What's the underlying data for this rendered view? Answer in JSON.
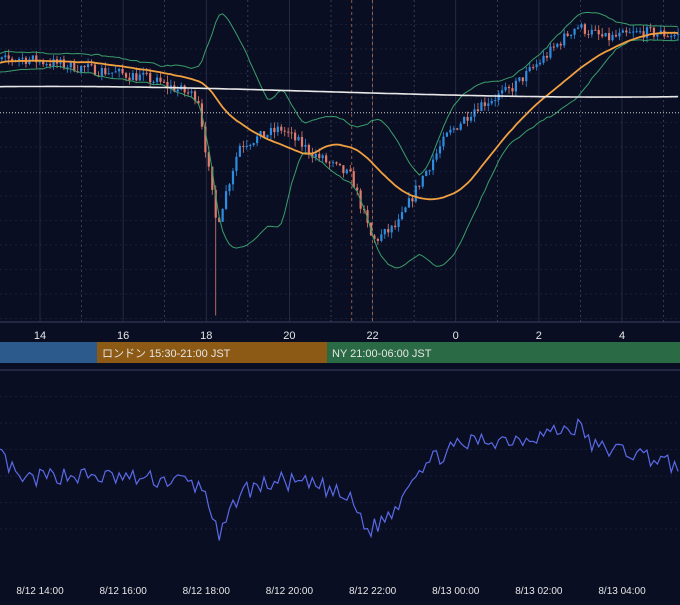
{
  "colors": {
    "background": "#0a0e23",
    "grid": "#2a3050",
    "candle_up": "#2f8de0",
    "candle_down": "#e07a6a",
    "ma_short": "#f0a040",
    "ma_long": "#e8e8e8",
    "bollinger": "#3a9e6a",
    "oscillator": "#5a6ae8",
    "session_asia": "#2c5a8c",
    "session_london": "#8c5a14",
    "session_ny": "#2a6a45",
    "label_text": "#e6e6e6"
  },
  "time_axis": {
    "top_ticks": [
      "14",
      "16",
      "18",
      "20",
      "22",
      "0",
      "2",
      "4"
    ],
    "bottom_ticks": [
      "8/12 14:00",
      "8/12 16:00",
      "8/12 18:00",
      "8/12 20:00",
      "8/12 22:00",
      "8/13 00:00",
      "8/13 02:00",
      "8/13 04:00"
    ]
  },
  "sessions": [
    {
      "name": "asia",
      "label": ""
    },
    {
      "name": "london",
      "label": "ロンドン 15:30-21:00 JST"
    },
    {
      "name": "ny",
      "label": "NY 21:00-06:00 JST"
    }
  ],
  "chart_data": [
    {
      "type": "candlestick",
      "x_unit": "hour (JST)",
      "x_start": 12.5,
      "x_end": 5.4,
      "series": [
        {
          "name": "",
          "kind": "candles",
          "seed": 7
        },
        {
          "name": "",
          "kind": "moving_average_short"
        },
        {
          "name": "",
          "kind": "moving_average_long"
        },
        {
          "name": "",
          "kind": "bollinger_bands"
        }
      ],
      "price_trend": [
        [
          12.5,
          0.8
        ],
        [
          13.5,
          0.82
        ],
        [
          15.0,
          0.79
        ],
        [
          16.5,
          0.76
        ],
        [
          17.8,
          0.7
        ],
        [
          18.25,
          0.3
        ],
        [
          18.8,
          0.55
        ],
        [
          19.8,
          0.6
        ],
        [
          20.6,
          0.52
        ],
        [
          21.5,
          0.45
        ],
        [
          22.0,
          0.25
        ],
        [
          22.6,
          0.3
        ],
        [
          23.2,
          0.45
        ],
        [
          23.8,
          0.58
        ],
        [
          0.5,
          0.67
        ],
        [
          1.3,
          0.72
        ],
        [
          2.2,
          0.83
        ],
        [
          2.9,
          0.92
        ],
        [
          3.6,
          0.88
        ],
        [
          4.5,
          0.9
        ],
        [
          5.4,
          0.89
        ]
      ],
      "reference_line": "dotted"
    },
    {
      "type": "line",
      "series": [
        {
          "name": "",
          "kind": "oscillator"
        }
      ],
      "trend": [
        [
          12.5,
          0.62
        ],
        [
          13.0,
          0.6
        ],
        [
          13.5,
          0.45
        ],
        [
          14.5,
          0.48
        ],
        [
          15.5,
          0.47
        ],
        [
          16.5,
          0.46
        ],
        [
          17.5,
          0.45
        ],
        [
          18.0,
          0.4
        ],
        [
          18.3,
          0.15
        ],
        [
          18.8,
          0.4
        ],
        [
          19.8,
          0.45
        ],
        [
          20.8,
          0.42
        ],
        [
          21.5,
          0.35
        ],
        [
          21.9,
          0.2
        ],
        [
          22.5,
          0.3
        ],
        [
          23.0,
          0.5
        ],
        [
          23.8,
          0.6
        ],
        [
          0.5,
          0.65
        ],
        [
          1.5,
          0.66
        ],
        [
          2.5,
          0.7
        ],
        [
          3.0,
          0.72
        ],
        [
          3.3,
          0.62
        ],
        [
          4.0,
          0.6
        ],
        [
          4.5,
          0.58
        ],
        [
          5.0,
          0.55
        ],
        [
          5.4,
          0.5
        ]
      ]
    }
  ]
}
